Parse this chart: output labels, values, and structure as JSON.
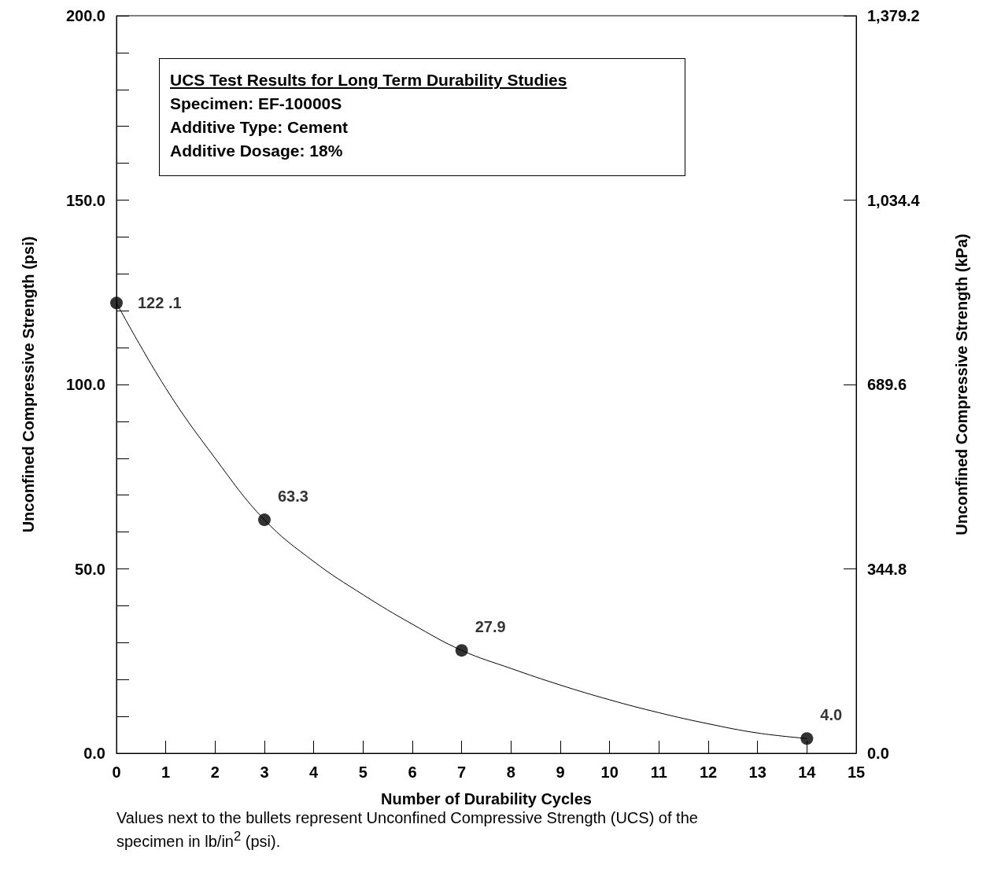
{
  "chart_data": {
    "type": "scatter",
    "title": "UCS Test Results for Long Term Durability Studies",
    "annotations": [
      "Specimen: EF-10000S",
      "Additive Type: Cement",
      "Additive Dosage: 18%",
      "Values next to the bullets represent Unconfined Compressive Strength (UCS) of the specimen in lb/in$^{2}$ (psi)."
    ],
    "xlabel": "Number of Durability Cycles",
    "ylabel": "Unconfined Compressive Strength (psi)",
    "y2label": "Unconfined Compressive Strength (kPa)",
    "xlim": [
      0,
      15
    ],
    "xticks": [
      0,
      1,
      2,
      3,
      4,
      5,
      6,
      7,
      8,
      9,
      10,
      11,
      12,
      13,
      14,
      15
    ],
    "ylim": [
      0,
      200
    ],
    "yticks": [
      {
        "value": 0,
        "label": "0.0"
      },
      {
        "value": 10,
        "label": null
      },
      {
        "value": 20,
        "label": null
      },
      {
        "value": 30,
        "label": null
      },
      {
        "value": 40,
        "label": null
      },
      {
        "value": 50,
        "label": "50.0"
      },
      {
        "value": 60,
        "label": null
      },
      {
        "value": 70,
        "label": null
      },
      {
        "value": 80,
        "label": null
      },
      {
        "value": 90,
        "label": null
      },
      {
        "value": 100,
        "label": "100.0"
      },
      {
        "value": 110,
        "label": null
      },
      {
        "value": 120,
        "label": null
      },
      {
        "value": 130,
        "label": null
      },
      {
        "value": 140,
        "label": null
      },
      {
        "value": 150,
        "label": "150.0"
      },
      {
        "value": 160,
        "label": null
      },
      {
        "value": 170,
        "label": null
      },
      {
        "value": 180,
        "label": null
      },
      {
        "value": 190,
        "label": null
      },
      {
        "value": 200,
        "label": "200.0"
      }
    ],
    "y2lim": [
      0,
      1379.2
    ],
    "y2ticks": [
      {
        "value": 0,
        "label": "0.0"
      },
      {
        "value": 344.8,
        "label": "344.8"
      },
      {
        "value": 689.6,
        "label": "689.6"
      },
      {
        "value": 1034.4,
        "label": "1,034.4"
      },
      {
        "value": 1379.2,
        "label": "1,379.2"
      }
    ],
    "series": [
      {
        "type": "line",
        "color": "#000000",
        "marker": "none",
        "x": [
          0,
          1,
          2,
          3,
          4,
          5,
          6,
          7,
          8,
          9,
          10,
          11,
          12,
          13,
          14
        ],
        "values": [
          122.1,
          99,
          80,
          63.3,
          52,
          43,
          35,
          27.9,
          23,
          18.5,
          14.5,
          11,
          8,
          5.5,
          4.0
        ]
      },
      {
        "type": "scatter",
        "color": "#000000",
        "marker": "circle",
        "x": [
          0,
          3,
          7,
          14
        ],
        "values": [
          122.1,
          63.3,
          27.9,
          4.0
        ],
        "value_labels": [
          "122 .1",
          "63.3",
          "27.9",
          "4.0"
        ]
      }
    ]
  }
}
